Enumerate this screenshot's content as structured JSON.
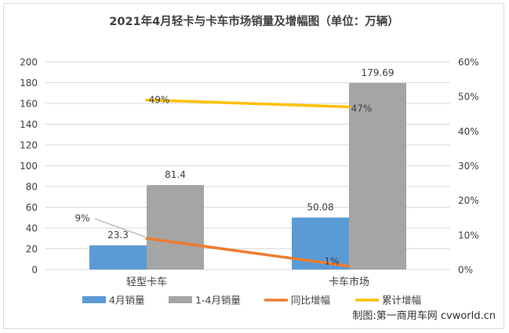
{
  "chart_data": {
    "type": "bar",
    "title": "2021年4月轻卡与卡车市场销量及增幅图（单位：万辆）",
    "categories": [
      "轻型卡车",
      "卡车市场"
    ],
    "series": [
      {
        "name": "4月销量",
        "kind": "bar",
        "axis": "left",
        "color": "#5b9bd5",
        "values": [
          23.3,
          50.08
        ],
        "labels": [
          "23.3",
          "50.08"
        ]
      },
      {
        "name": "1-4月销量",
        "kind": "bar",
        "axis": "left",
        "color": "#a5a5a5",
        "values": [
          81.4,
          179.69
        ],
        "labels": [
          "81.4",
          "179.69"
        ]
      },
      {
        "name": "同比增幅",
        "kind": "line",
        "axis": "right",
        "color": "#ed7d31",
        "values": [
          0.09,
          0.01
        ],
        "labels": [
          "9%",
          "1%"
        ]
      },
      {
        "name": "累计增幅",
        "kind": "line",
        "axis": "right",
        "color": "#ffc000",
        "values": [
          0.49,
          0.47
        ],
        "labels": [
          "49%",
          "47%"
        ]
      }
    ],
    "y_left": {
      "min": 0,
      "max": 200,
      "ticks": [
        "0",
        "20",
        "40",
        "60",
        "80",
        "100",
        "120",
        "140",
        "160",
        "180",
        "200"
      ]
    },
    "y_right": {
      "min": 0,
      "max": 0.6,
      "ticks": [
        "0%",
        "10%",
        "20%",
        "30%",
        "40%",
        "50%",
        "60%"
      ]
    },
    "grid": true,
    "legend_position": "bottom"
  },
  "credit": "制图:第一商用车网 cvworld.cn"
}
